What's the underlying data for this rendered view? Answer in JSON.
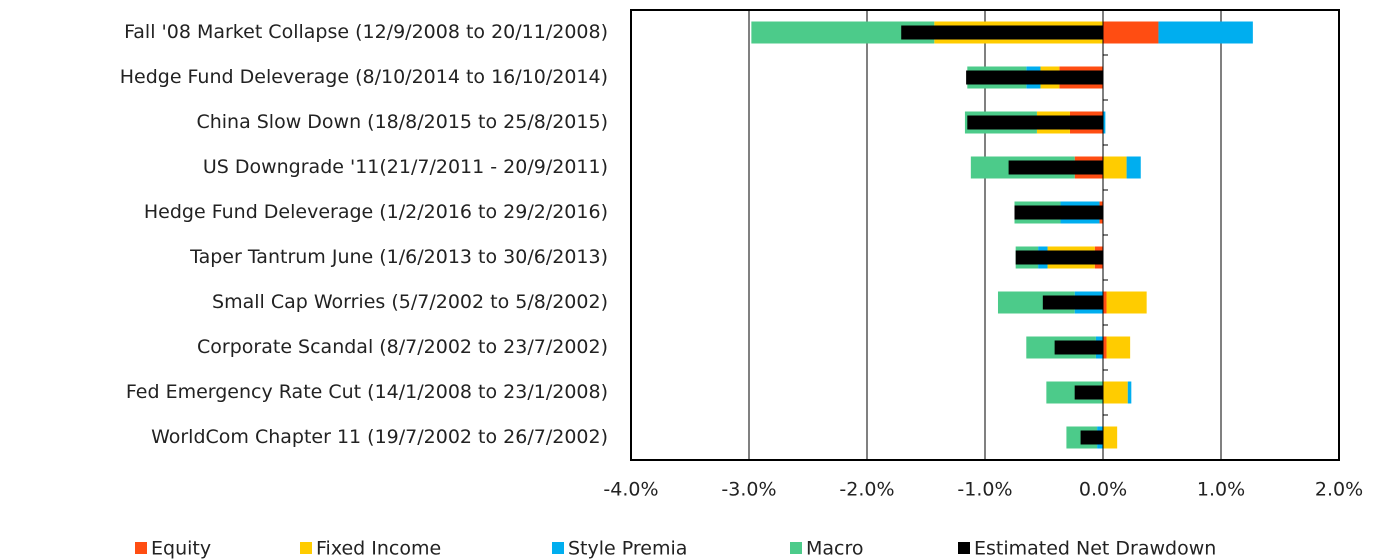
{
  "chart_data": {
    "type": "stacked-hbar",
    "categories": [
      "Fall '08 Market Collapse (12/9/2008 to 20/11/2008)",
      "Hedge Fund Deleverage (8/10/2014 to 16/10/2014)",
      "China Slow Down (18/8/2015 to 25/8/2015)",
      "US Downgrade '11(21/7/2011 - 20/9/2011)",
      "Hedge Fund Deleverage (1/2/2016 to 29/2/2016)",
      "Taper Tantrum June (1/6/2013 to 30/6/2013)",
      "Small Cap Worries (5/7/2002 to 5/8/2002)",
      "Corporate Scandal (8/7/2002 to 23/7/2002)",
      "Fed Emergency Rate Cut (14/1/2008 to 23/1/2008)",
      "WorldCom Chapter 11 (19/7/2002 to 26/7/2002)"
    ],
    "series": [
      {
        "name": "Equity",
        "color": "#ff4d12",
        "values": [
          0.47,
          -0.37,
          -0.28,
          -0.24,
          -0.03,
          -0.07,
          0.03,
          0.03,
          0,
          0
        ]
      },
      {
        "name": "Fixed Income",
        "color": "#ffcc00",
        "values": [
          -1.43,
          -0.16,
          -0.28,
          0.2,
          0,
          -0.4,
          0.34,
          0.2,
          0.21,
          0.12
        ]
      },
      {
        "name": "Style Premia",
        "color": "#00aeef",
        "values": [
          0.8,
          -0.12,
          0.02,
          0.12,
          -0.33,
          -0.08,
          -0.24,
          -0.06,
          0.03,
          -0.05
        ]
      },
      {
        "name": "Macro",
        "color": "#4ccb8a",
        "values": [
          -1.55,
          -0.5,
          -0.61,
          -0.88,
          -0.39,
          -0.19,
          -0.65,
          -0.59,
          -0.48,
          -0.26
        ]
      }
    ],
    "net_series": {
      "name": "Estimated Net Drawdown",
      "color": "#000000",
      "values": [
        -1.71,
        -1.16,
        -1.15,
        -0.8,
        -0.75,
        -0.74,
        -0.51,
        -0.41,
        -0.24,
        -0.19
      ]
    },
    "xlim": [
      -4,
      2
    ],
    "xticks": [
      {
        "value": -4,
        "label": "-4.0%"
      },
      {
        "value": -3,
        "label": "-3.0%"
      },
      {
        "value": -2,
        "label": "-2.0%"
      },
      {
        "value": -1,
        "label": "-1.0%"
      },
      {
        "value": 0,
        "label": "0.0%"
      },
      {
        "value": 1,
        "label": "1.0%"
      },
      {
        "value": 2,
        "label": "2.0%"
      }
    ],
    "grid": true
  }
}
